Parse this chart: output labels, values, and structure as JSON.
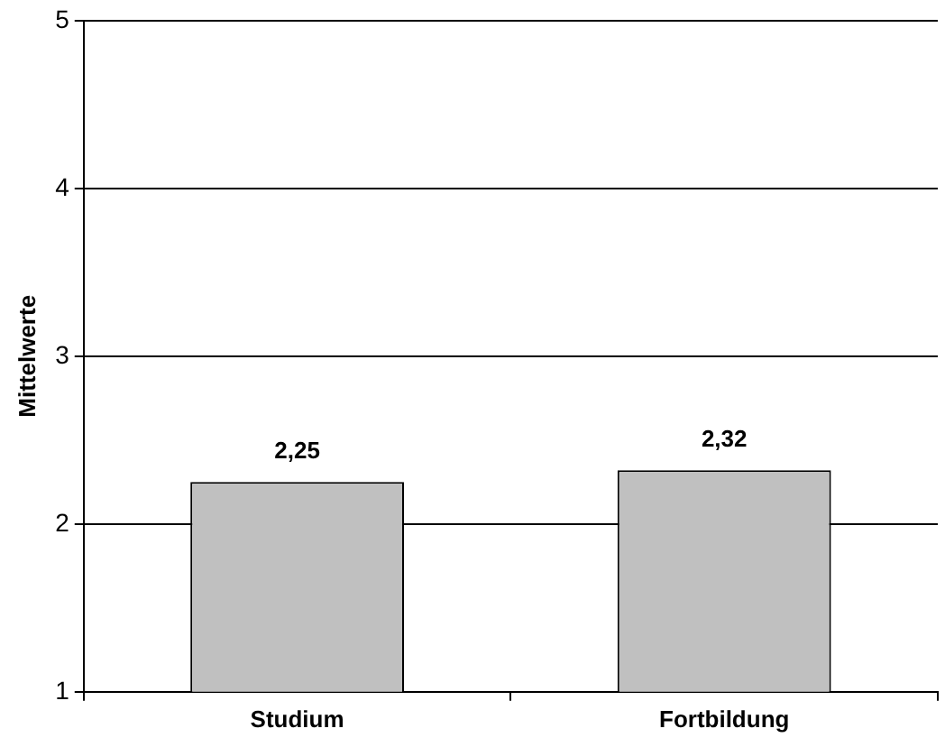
{
  "chart_data": {
    "type": "bar",
    "ylabel": "Mittelwerte",
    "categories": [
      "Studium",
      "Fortbildung"
    ],
    "values": [
      2.25,
      2.32
    ],
    "value_labels": [
      "2,25",
      "2,32"
    ],
    "color": "#c0c0c0",
    "ylim": [
      1,
      5
    ],
    "yticks": [
      1,
      2,
      3,
      4,
      5
    ],
    "grid": "y",
    "legend": false
  }
}
